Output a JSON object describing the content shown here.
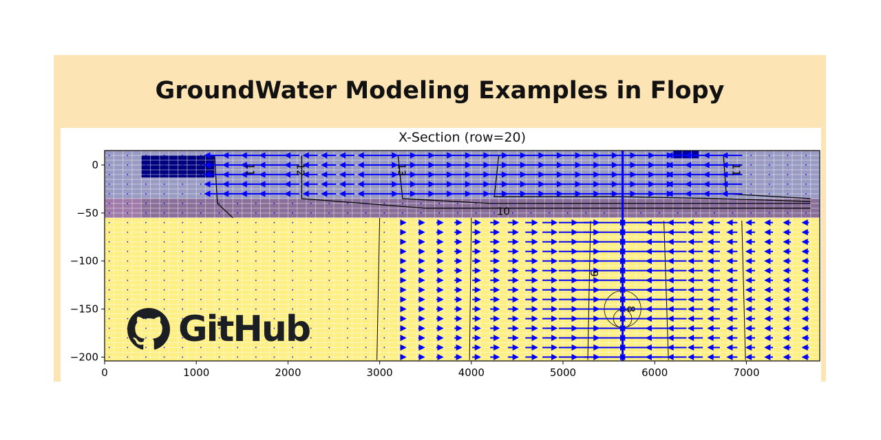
{
  "banner": {
    "title": "GroundWater Modeling Examples in Flopy",
    "background": "#fde4b4"
  },
  "logo": {
    "text": "GitHub"
  },
  "chart_data": {
    "type": "heatmap",
    "title": "X-Section (row=20)",
    "xlabel": "",
    "ylabel": "",
    "xlim": [
      0,
      7800
    ],
    "ylim": [
      -204,
      15
    ],
    "xticks": [
      0,
      1000,
      2000,
      3000,
      4000,
      5000,
      6000,
      7000
    ],
    "yticks": [
      0,
      -50,
      -100,
      -150,
      -200
    ],
    "grid": true,
    "layers": [
      {
        "top": 15,
        "bottom": -35,
        "color": "#9a9bc3"
      },
      {
        "top": -35,
        "bottom": -55,
        "color": "#8a6f98"
      },
      {
        "top": -55,
        "bottom": -204,
        "color": "#fdef84"
      }
    ],
    "highlight_cells": [
      {
        "x": [
          400,
          1200
        ],
        "y": [
          -13,
          10
        ],
        "color": "#00007f"
      },
      {
        "x": [
          6200,
          6480
        ],
        "y": [
          7,
          15
        ],
        "color": "#0000a0"
      }
    ],
    "contour_labels": [
      {
        "text": "11",
        "x": 1550,
        "y": -5,
        "rotate": 90
      },
      {
        "text": "12",
        "x": 2100,
        "y": -5,
        "rotate": 90
      },
      {
        "text": "13",
        "x": 3200,
        "y": -5,
        "rotate": 90
      },
      {
        "text": "11",
        "x": 6850,
        "y": -5,
        "rotate": 90
      },
      {
        "text": "10",
        "x": 4350,
        "y": -52,
        "rotate": 0
      },
      {
        "text": "9",
        "x": 5300,
        "y": -113,
        "rotate": 90
      },
      {
        "text": "8",
        "x": 5700,
        "y": -150,
        "rotate": 90
      }
    ],
    "quiver_color": "#0000ff",
    "contour_color": "#000000"
  }
}
